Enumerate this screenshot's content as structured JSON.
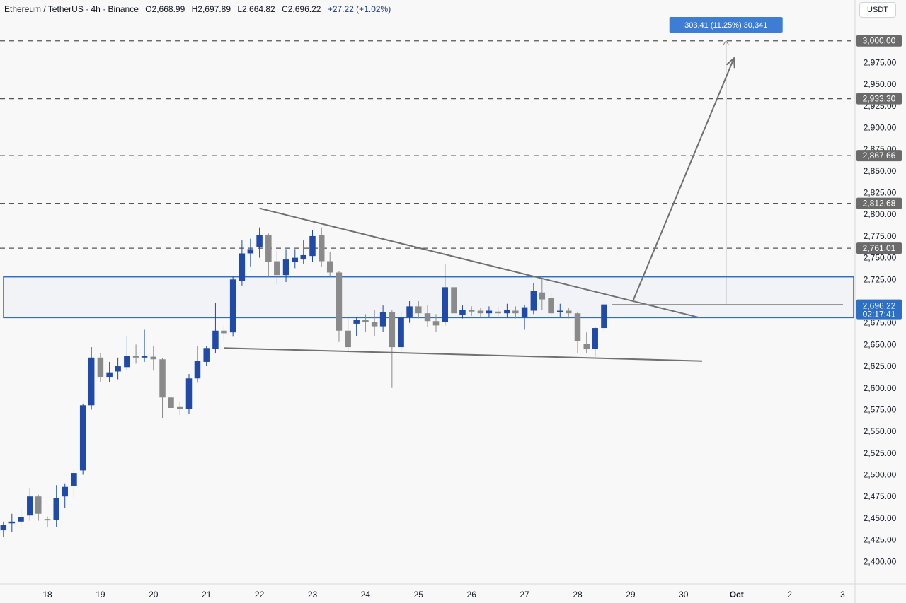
{
  "header": {
    "symbol": "Ethereum / TetherUS · 4h · Binance",
    "open": "O2,668.99",
    "high": "H2,697.89",
    "low": "L2,664.82",
    "close": "C2,696.22",
    "change": "+27.22 (+1.02%)"
  },
  "currency": "USDT",
  "chart_data": {
    "type": "candlestick",
    "timeframe": "4h",
    "ylim": [
      2385,
      3005
    ],
    "y_ticks": [
      "2,400.00",
      "2,425.00",
      "2,450.00",
      "2,475.00",
      "2,500.00",
      "2,525.00",
      "2,550.00",
      "2,575.00",
      "2,600.00",
      "2,625.00",
      "2,650.00",
      "2,675.00",
      "2,725.00",
      "2,750.00",
      "2,775.00",
      "2,800.00",
      "2,825.00",
      "2,850.00",
      "2,875.00",
      "2,900.00",
      "2,925.00",
      "2,950.00",
      "2,975.00"
    ],
    "x_labels": [
      {
        "label": "18",
        "day": 18
      },
      {
        "label": "19",
        "day": 19
      },
      {
        "label": "20",
        "day": 20
      },
      {
        "label": "21",
        "day": 21
      },
      {
        "label": "22",
        "day": 22
      },
      {
        "label": "23",
        "day": 23
      },
      {
        "label": "24",
        "day": 24
      },
      {
        "label": "25",
        "day": 25
      },
      {
        "label": "26",
        "day": 26
      },
      {
        "label": "27",
        "day": 27
      },
      {
        "label": "28",
        "day": 28
      },
      {
        "label": "29",
        "day": 29
      },
      {
        "label": "30",
        "day": 30
      },
      {
        "label": "Oct",
        "day": 31
      },
      {
        "label": "2",
        "day": 32
      },
      {
        "label": "3",
        "day": 33
      }
    ],
    "levels": [
      {
        "value": 3000.0,
        "label": "3,000.00"
      },
      {
        "value": 2933.3,
        "label": "2,933.30"
      },
      {
        "value": 2867.66,
        "label": "2,867.66"
      },
      {
        "value": 2812.68,
        "label": "2,812.68"
      },
      {
        "value": 2761.01,
        "label": "2,761.01"
      }
    ],
    "current_price": {
      "value": 2696.22,
      "label": "2,696.22",
      "countdown": "02:17:41"
    },
    "zone": {
      "top": 2728,
      "bottom": 2681
    },
    "trendlines": [
      {
        "from": {
          "day": 22.0,
          "price": 2807
        },
        "to": {
          "day": 30.3,
          "price": 2681
        }
      },
      {
        "from": {
          "day": 21.33,
          "price": 2646
        },
        "to": {
          "day": 30.35,
          "price": 2631
        }
      }
    ],
    "projection": {
      "from": {
        "day": 29.05,
        "price": 2701
      },
      "to": {
        "day": 30.95,
        "price": 2980
      }
    },
    "measure": {
      "label": "303.41 (11.25%) 30,341",
      "day": 30.8,
      "from": 2696.5,
      "to": 3000
    },
    "candles": [
      [
        17.0,
        2420,
        2437,
        2413,
        2438
      ],
      [
        17.17,
        2436,
        2442,
        2428,
        2446
      ],
      [
        17.33,
        2444,
        2446,
        2434,
        2455
      ],
      [
        17.5,
        2446,
        2451,
        2438,
        2462
      ],
      [
        17.67,
        2453,
        2475,
        2447,
        2484
      ],
      [
        17.83,
        2475,
        2455,
        2447,
        2477
      ],
      [
        18.0,
        2449,
        2448,
        2440,
        2452
      ],
      [
        18.17,
        2448,
        2473,
        2440,
        2488
      ],
      [
        18.33,
        2475,
        2486,
        2462,
        2490
      ],
      [
        18.5,
        2487,
        2502,
        2474,
        2507
      ],
      [
        18.67,
        2505,
        2580,
        2500,
        2582
      ],
      [
        18.83,
        2580,
        2635,
        2575,
        2647
      ],
      [
        19.0,
        2635,
        2612,
        2607,
        2640
      ],
      [
        19.17,
        2612,
        2618,
        2607,
        2630
      ],
      [
        19.33,
        2619,
        2625,
        2610,
        2635
      ],
      [
        19.5,
        2624,
        2637,
        2620,
        2660
      ],
      [
        19.67,
        2637,
        2635,
        2628,
        2650
      ],
      [
        19.83,
        2635,
        2637,
        2630,
        2667
      ],
      [
        20.0,
        2636,
        2633,
        2620,
        2648
      ],
      [
        20.17,
        2633,
        2589,
        2565,
        2634
      ],
      [
        20.33,
        2589,
        2577,
        2567,
        2592
      ],
      [
        20.5,
        2578,
        2576,
        2569,
        2584
      ],
      [
        20.67,
        2576,
        2611,
        2570,
        2616
      ],
      [
        20.83,
        2611,
        2631,
        2606,
        2648
      ],
      [
        21.0,
        2630,
        2646,
        2625,
        2648
      ],
      [
        21.17,
        2645,
        2666,
        2640,
        2698
      ],
      [
        21.33,
        2666,
        2663,
        2655,
        2672
      ],
      [
        21.5,
        2664,
        2725,
        2659,
        2729
      ],
      [
        21.67,
        2723,
        2755,
        2718,
        2770
      ],
      [
        21.83,
        2755,
        2760,
        2740,
        2772
      ],
      [
        22.0,
        2762,
        2776,
        2750,
        2785
      ],
      [
        22.17,
        2776,
        2745,
        2728,
        2778
      ],
      [
        22.33,
        2746,
        2730,
        2720,
        2758
      ],
      [
        22.5,
        2730,
        2748,
        2722,
        2760
      ],
      [
        22.67,
        2745,
        2750,
        2738,
        2760
      ],
      [
        22.83,
        2748,
        2753,
        2743,
        2770
      ],
      [
        23.0,
        2752,
        2775,
        2745,
        2782
      ],
      [
        23.17,
        2776,
        2746,
        2740,
        2785
      ],
      [
        23.33,
        2746,
        2733,
        2728,
        2757
      ],
      [
        23.5,
        2733,
        2666,
        2653,
        2735
      ],
      [
        23.67,
        2666,
        2647,
        2641,
        2680
      ],
      [
        23.83,
        2674,
        2678,
        2660,
        2682
      ],
      [
        24.0,
        2678,
        2676,
        2665,
        2685
      ],
      [
        24.17,
        2676,
        2671,
        2660,
        2690
      ],
      [
        24.33,
        2671,
        2687,
        2665,
        2695
      ],
      [
        24.5,
        2687,
        2647,
        2600,
        2690
      ],
      [
        24.67,
        2647,
        2681,
        2641,
        2687
      ],
      [
        24.83,
        2681,
        2694,
        2675,
        2700
      ],
      [
        25.0,
        2694,
        2686,
        2680,
        2700
      ],
      [
        25.17,
        2686,
        2677,
        2670,
        2695
      ],
      [
        25.33,
        2677,
        2672,
        2665,
        2685
      ],
      [
        25.5,
        2676,
        2716,
        2672,
        2743
      ],
      [
        25.67,
        2716,
        2686,
        2670,
        2718
      ],
      [
        25.83,
        2684,
        2690,
        2680,
        2695
      ],
      [
        26.0,
        2690,
        2688,
        2683,
        2694
      ],
      [
        26.17,
        2689,
        2686,
        2682,
        2692
      ],
      [
        26.33,
        2686,
        2689,
        2682,
        2694
      ],
      [
        26.5,
        2688,
        2686,
        2680,
        2693
      ],
      [
        26.67,
        2686,
        2690,
        2681,
        2697
      ],
      [
        26.83,
        2689,
        2686,
        2680,
        2694
      ],
      [
        27.0,
        2681,
        2693,
        2667,
        2696
      ],
      [
        27.17,
        2689,
        2712,
        2685,
        2721
      ],
      [
        27.33,
        2710,
        2702,
        2690,
        2726
      ],
      [
        27.5,
        2704,
        2686,
        2682,
        2710
      ],
      [
        27.67,
        2689,
        2689,
        2682,
        2697
      ],
      [
        27.83,
        2689,
        2686,
        2680,
        2692
      ],
      [
        28.0,
        2686,
        2654,
        2640,
        2688
      ],
      [
        28.17,
        2651,
        2645,
        2640,
        2664
      ],
      [
        28.33,
        2645,
        2669,
        2636,
        2670
      ],
      [
        28.5,
        2669,
        2696.22,
        2664.82,
        2697.89
      ]
    ]
  }
}
